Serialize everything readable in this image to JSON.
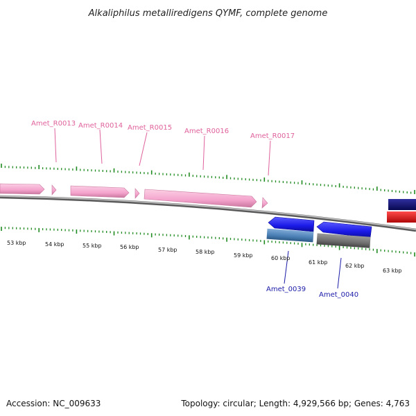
{
  "header": {
    "title": "Alkaliphilus metalliredigens QYMF, complete genome"
  },
  "footer": {
    "accession": "Accession: NC_009633",
    "summary": "Topology: circular; Length: 4,929,566 bp; Genes: 4,763"
  },
  "colors": {
    "rna": "#f4a3cc",
    "rna_label": "#e0619c",
    "cds_forward": "#1a1ae8",
    "cds_label": "#1a1aa8",
    "tick": "#1f8a1f",
    "backbone": "#8c8c8c",
    "track_blue": "#4a7fb5",
    "track_gray": "#6e6e6e",
    "navy": "#101070",
    "red": "#e81010"
  },
  "chart_data": {
    "type": "genome-map",
    "axis_labels": [
      "53 kbp",
      "54 kbp",
      "55 kbp",
      "56 kbp",
      "57 kbp",
      "58 kbp",
      "59 kbp",
      "60 kbp",
      "61 kbp",
      "62 kbp",
      "63 kbp"
    ],
    "rna_genes": [
      {
        "label": "Amet_R0013"
      },
      {
        "label": "Amet_R0014"
      },
      {
        "label": "Amet_R0015"
      },
      {
        "label": "Amet_R0016"
      },
      {
        "label": "Amet_R0017"
      }
    ],
    "cds_genes": [
      {
        "label": "Amet_0039"
      },
      {
        "label": "Amet_0040"
      }
    ]
  }
}
